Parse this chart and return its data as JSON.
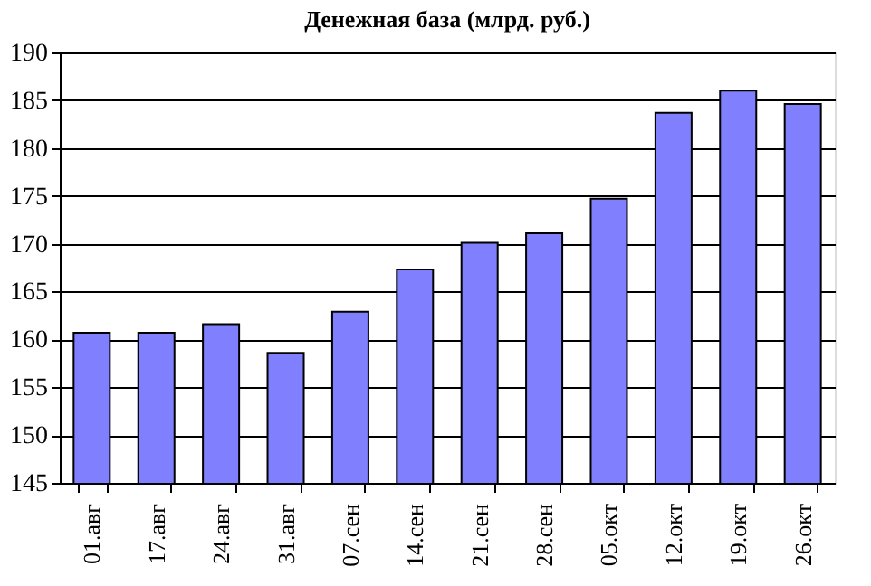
{
  "chart_data": {
    "type": "bar",
    "title": "Денежная база (млрд. руб.)",
    "categories": [
      "01.авг",
      "17.авг",
      "24.авг",
      "31.авг",
      "07.сен",
      "14.сен",
      "21.сен",
      "28.сен",
      "05.окт",
      "12.окт",
      "19.окт",
      "26.окт"
    ],
    "values": [
      160.7,
      160.7,
      161.6,
      158.6,
      162.9,
      167.3,
      170.1,
      171.1,
      174.7,
      183.7,
      186.0,
      184.6
    ],
    "color": "#8080ff",
    "ylim": [
      145,
      190
    ],
    "yticks": [
      145,
      150,
      155,
      160,
      165,
      170,
      175,
      180,
      185,
      190
    ],
    "grid": "y"
  }
}
